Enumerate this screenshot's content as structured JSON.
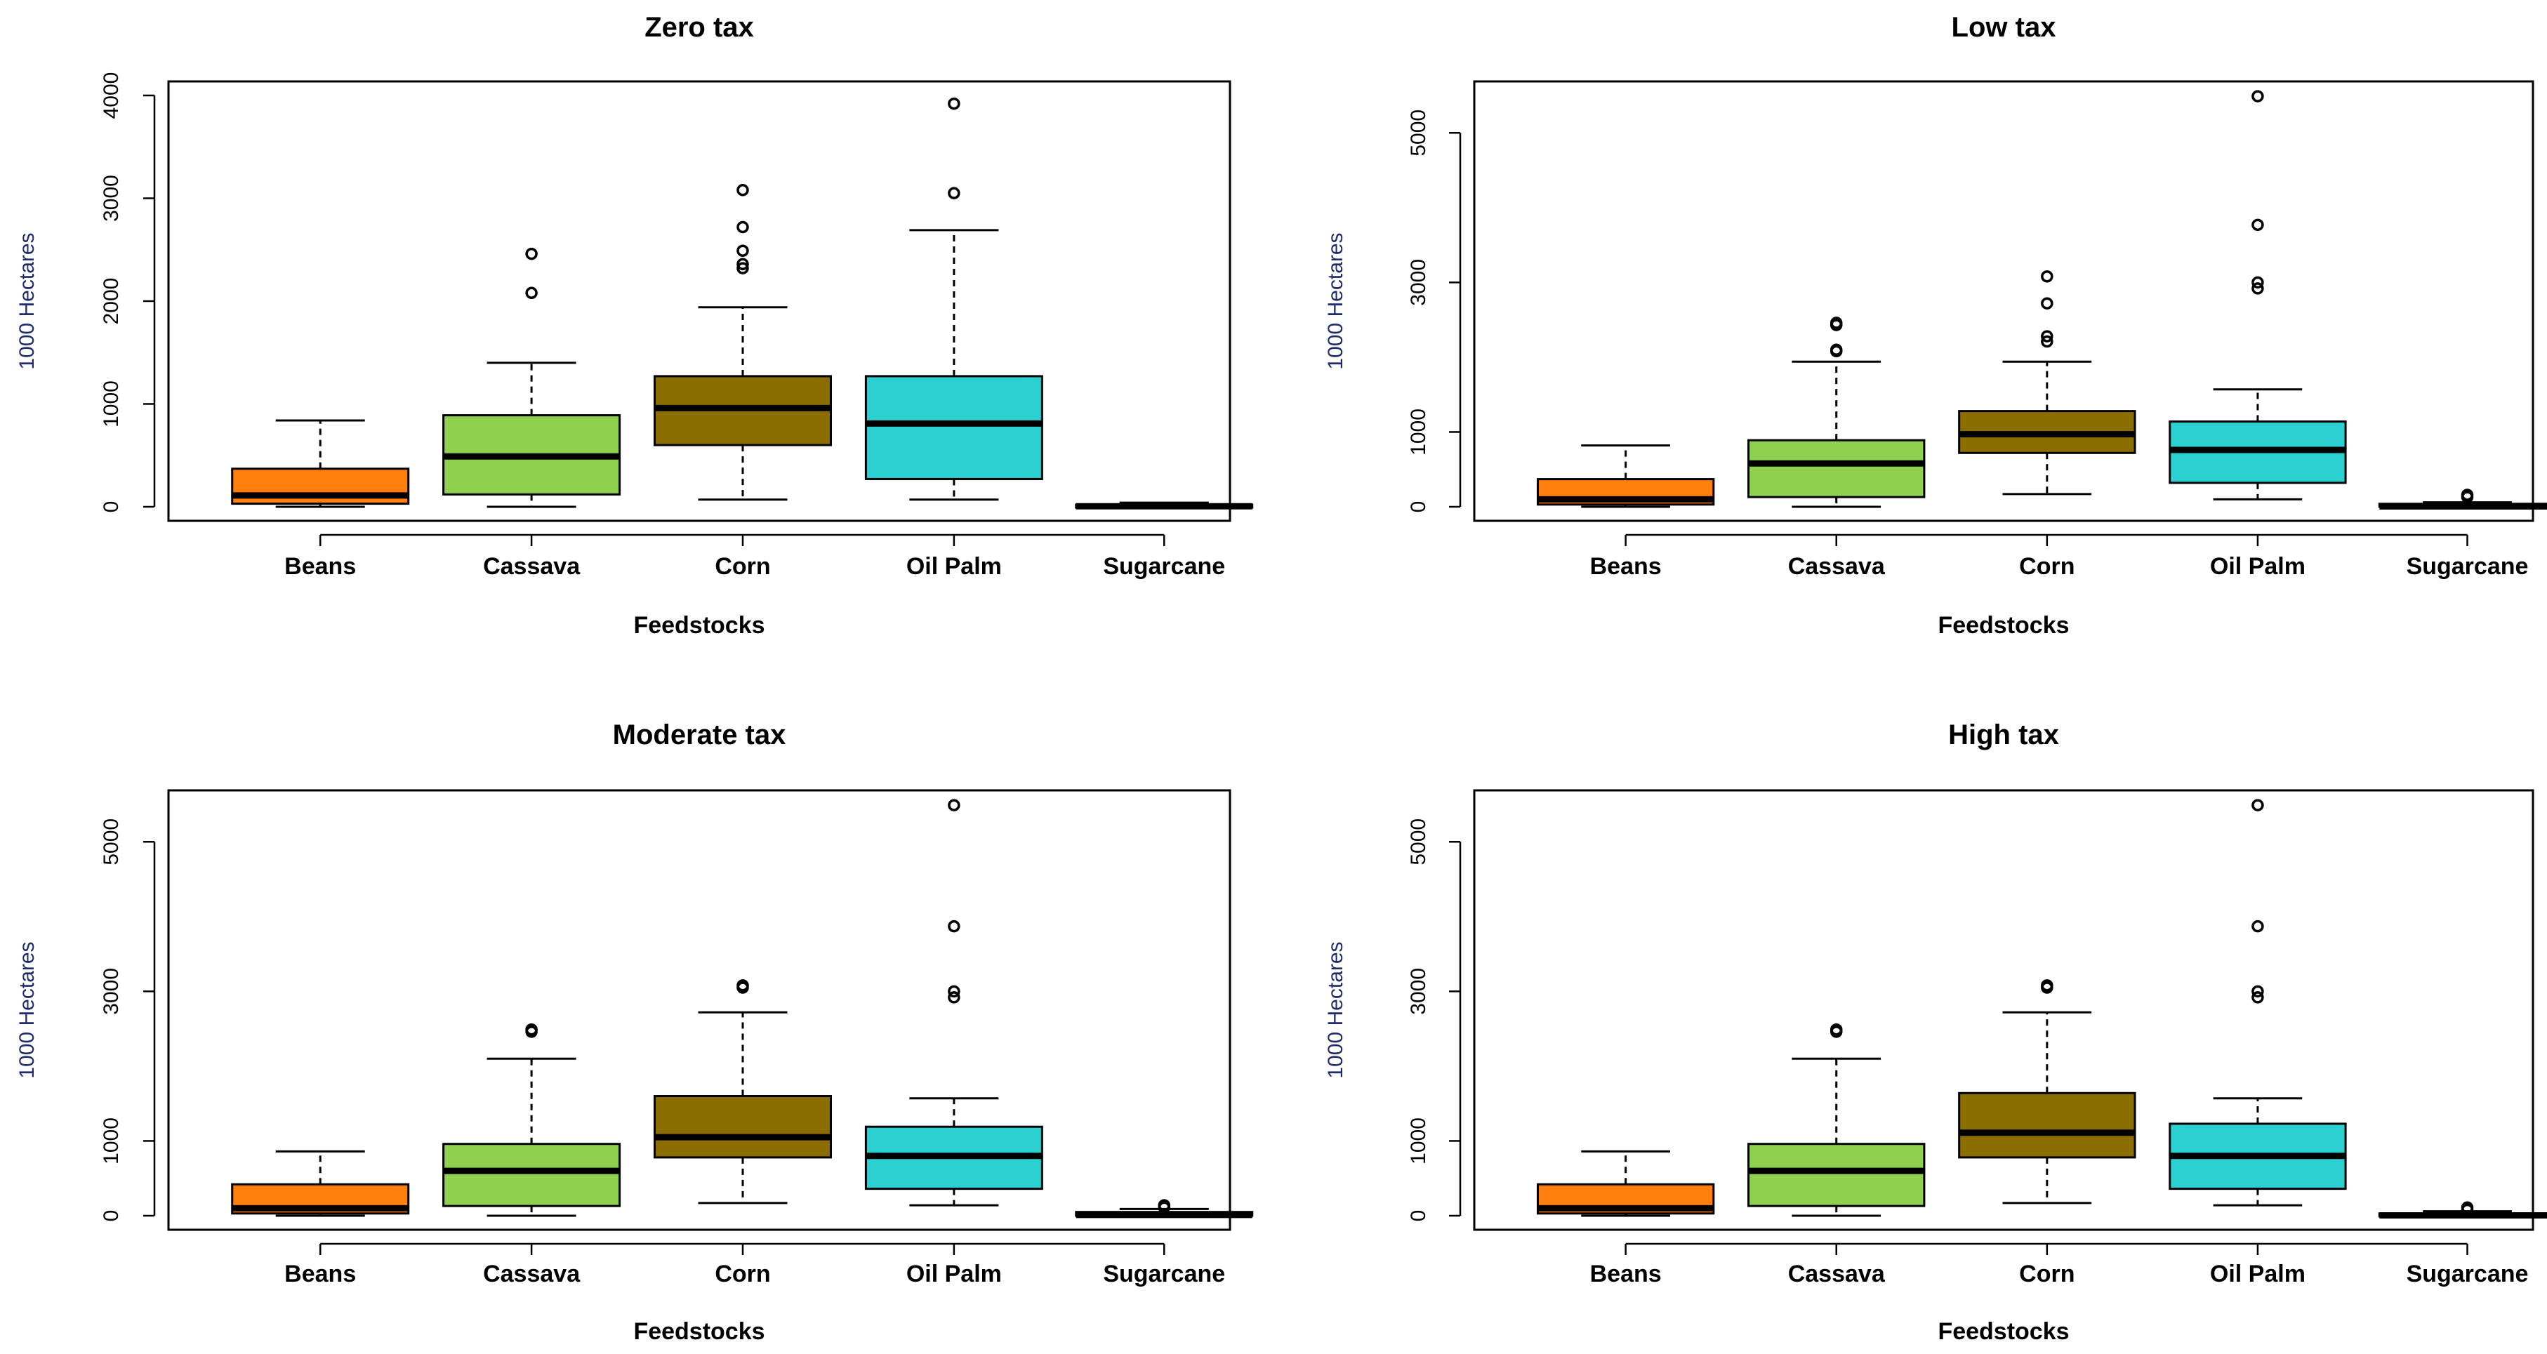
{
  "chart_data": [
    {
      "type": "box",
      "title": "Zero tax",
      "xlabel": "Feedstocks",
      "ylabel": "1000 Hectares",
      "ylim": [
        0,
        4000
      ],
      "yticks": [
        0,
        1000,
        2000,
        3000,
        4000
      ],
      "categories": [
        "Beans",
        "Cassava",
        "Corn",
        "Oil Palm",
        "Sugarcane"
      ],
      "colors": [
        "#ff7f0e",
        "#8fd14f",
        "#8b6d00",
        "#2cd0d0",
        "#ff7f0e"
      ],
      "boxes": [
        {
          "category": "Beans",
          "whisker_low": 0,
          "q1": 30,
          "median": 110,
          "q3": 370,
          "whisker_high": 840,
          "outliers": []
        },
        {
          "category": "Cassava",
          "whisker_low": 0,
          "q1": 120,
          "median": 490,
          "q3": 890,
          "whisker_high": 1400,
          "outliers": [
            2080,
            2460
          ]
        },
        {
          "category": "Corn",
          "whisker_low": 70,
          "q1": 600,
          "median": 960,
          "q3": 1270,
          "whisker_high": 1940,
          "outliers": [
            2320,
            2360,
            2490,
            2720,
            3080
          ]
        },
        {
          "category": "Oil Palm",
          "whisker_low": 70,
          "q1": 270,
          "median": 810,
          "q3": 1270,
          "whisker_high": 2690,
          "outliers": [
            3050,
            3920
          ]
        },
        {
          "category": "Sugarcane",
          "whisker_low": 0,
          "q1": 0,
          "median": 5,
          "q3": 20,
          "whisker_high": 40,
          "outliers": []
        }
      ]
    },
    {
      "type": "box",
      "title": "Low tax",
      "xlabel": "Feedstocks",
      "ylabel": "1000 Hectares",
      "ylim": [
        0,
        5500
      ],
      "yticks": [
        0,
        1000,
        3000,
        5000
      ],
      "categories": [
        "Beans",
        "Cassava",
        "Corn",
        "Oil Palm",
        "Sugarcane"
      ],
      "colors": [
        "#ff7f0e",
        "#8fd14f",
        "#8b6d00",
        "#2cd0d0",
        "#ff7f0e"
      ],
      "boxes": [
        {
          "category": "Beans",
          "whisker_low": 0,
          "q1": 30,
          "median": 100,
          "q3": 370,
          "whisker_high": 820,
          "outliers": []
        },
        {
          "category": "Cassava",
          "whisker_low": 0,
          "q1": 130,
          "median": 580,
          "q3": 890,
          "whisker_high": 1940,
          "outliers": [
            2080,
            2100,
            2430,
            2460
          ]
        },
        {
          "category": "Corn",
          "whisker_low": 170,
          "q1": 720,
          "median": 970,
          "q3": 1280,
          "whisker_high": 1940,
          "outliers": [
            2210,
            2280,
            2720,
            3080
          ]
        },
        {
          "category": "Oil Palm",
          "whisker_low": 100,
          "q1": 320,
          "median": 760,
          "q3": 1140,
          "whisker_high": 1570,
          "outliers": [
            2920,
            3000,
            3770,
            5490
          ]
        },
        {
          "category": "Sugarcane",
          "whisker_low": 0,
          "q1": 0,
          "median": 5,
          "q3": 40,
          "whisker_high": 60,
          "outliers": [
            130,
            160
          ]
        }
      ]
    },
    {
      "type": "box",
      "title": "Moderate tax",
      "xlabel": "Feedstocks",
      "ylabel": "1000 Hectares",
      "ylim": [
        0,
        5500
      ],
      "yticks": [
        0,
        1000,
        3000,
        5000
      ],
      "categories": [
        "Beans",
        "Cassava",
        "Corn",
        "Oil Palm",
        "Sugarcane"
      ],
      "colors": [
        "#ff7f0e",
        "#8fd14f",
        "#8b6d00",
        "#2cd0d0",
        "#ff7f0e"
      ],
      "boxes": [
        {
          "category": "Beans",
          "whisker_low": 0,
          "q1": 30,
          "median": 100,
          "q3": 420,
          "whisker_high": 860,
          "outliers": []
        },
        {
          "category": "Cassava",
          "whisker_low": 0,
          "q1": 130,
          "median": 600,
          "q3": 960,
          "whisker_high": 2100,
          "outliers": [
            2460,
            2490
          ]
        },
        {
          "category": "Corn",
          "whisker_low": 170,
          "q1": 780,
          "median": 1050,
          "q3": 1600,
          "whisker_high": 2720,
          "outliers": [
            3050,
            3080
          ]
        },
        {
          "category": "Oil Palm",
          "whisker_low": 140,
          "q1": 360,
          "median": 800,
          "q3": 1190,
          "whisker_high": 1570,
          "outliers": [
            2920,
            3000,
            3870,
            5490
          ]
        },
        {
          "category": "Sugarcane",
          "whisker_low": 0,
          "q1": 0,
          "median": 10,
          "q3": 50,
          "whisker_high": 90,
          "outliers": [
            110,
            140
          ]
        }
      ]
    },
    {
      "type": "box",
      "title": "High tax",
      "xlabel": "Feedstocks",
      "ylabel": "1000 Hectares",
      "ylim": [
        0,
        5500
      ],
      "yticks": [
        0,
        1000,
        3000,
        5000
      ],
      "categories": [
        "Beans",
        "Cassava",
        "Corn",
        "Oil Palm",
        "Sugarcane"
      ],
      "colors": [
        "#ff7f0e",
        "#8fd14f",
        "#8b6d00",
        "#2cd0d0",
        "#ff7f0e"
      ],
      "boxes": [
        {
          "category": "Beans",
          "whisker_low": 0,
          "q1": 30,
          "median": 100,
          "q3": 420,
          "whisker_high": 860,
          "outliers": []
        },
        {
          "category": "Cassava",
          "whisker_low": 0,
          "q1": 130,
          "median": 600,
          "q3": 960,
          "whisker_high": 2100,
          "outliers": [
            2460,
            2490
          ]
        },
        {
          "category": "Corn",
          "whisker_low": 170,
          "q1": 780,
          "median": 1110,
          "q3": 1640,
          "whisker_high": 2720,
          "outliers": [
            3050,
            3080
          ]
        },
        {
          "category": "Oil Palm",
          "whisker_low": 140,
          "q1": 360,
          "median": 800,
          "q3": 1230,
          "whisker_high": 1570,
          "outliers": [
            2920,
            3000,
            3870,
            5490
          ]
        },
        {
          "category": "Sugarcane",
          "whisker_low": 0,
          "q1": 0,
          "median": 5,
          "q3": 30,
          "whisker_high": 60,
          "outliers": [
            80,
            110
          ]
        }
      ]
    }
  ]
}
